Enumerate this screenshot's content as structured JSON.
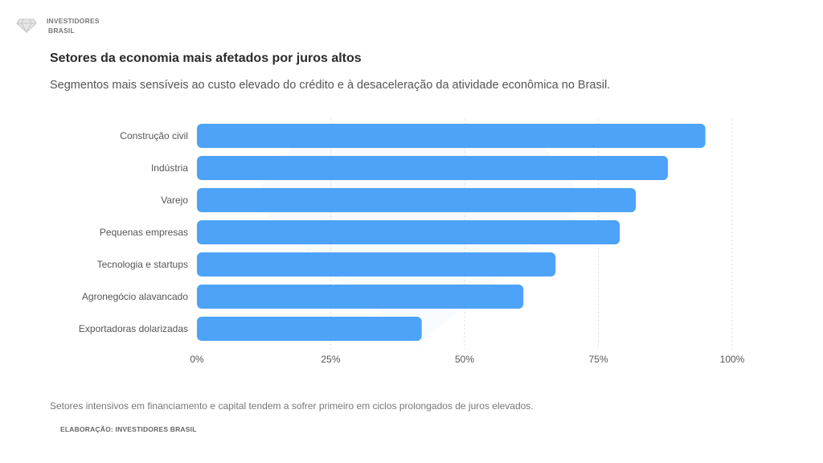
{
  "brand": {
    "line1": "INVESTIDORES",
    "line2": "BRASIL",
    "logo_icon": "diamond-icon"
  },
  "title": "Setores da economia mais afetados por juros altos",
  "subtitle": "Segmentos mais sensíveis ao custo elevado do crédito e à desaceleração da atividade econômica no Brasil.",
  "note": "Setores intensivos em financiamento e capital tendem a sofrer primeiro em ciclos prolongados de juros elevados.",
  "source": "ELABORAÇÃO: INVESTIDORES BRASIL",
  "colors": {
    "bar": "#4da3f7",
    "grid": "#dddddd"
  },
  "chart_data": {
    "type": "bar",
    "orientation": "horizontal",
    "categories": [
      "Construção civil",
      "Indústria",
      "Varejo",
      "Pequenas empresas",
      "Tecnologia e startups",
      "Agronegócio alavancado",
      "Exportadoras dolarizadas"
    ],
    "values": [
      95,
      88,
      82,
      79,
      67,
      61,
      42
    ],
    "xlim": [
      0,
      100
    ],
    "xticks": [
      0,
      25,
      50,
      75,
      100
    ],
    "xtick_labels": [
      "0%",
      "25%",
      "50%",
      "75%",
      "100%"
    ],
    "grid": true
  }
}
